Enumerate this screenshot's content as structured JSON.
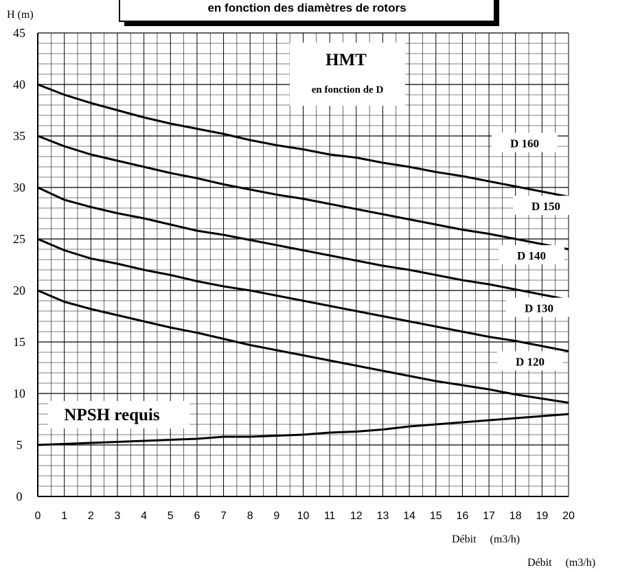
{
  "title_box": {
    "text": "en fonction des diamètres de rotors"
  },
  "hmt_box": {
    "title": "HMT",
    "subtitle": "en fonction de D"
  },
  "npsh_box": {
    "text": "NPSH requis"
  },
  "axes": {
    "ylabel": "H (m)",
    "xlabel_1": "Débit     (m3/h)",
    "xlabel_2": "Débit     (m3/h)"
  },
  "chart_data": {
    "type": "line",
    "title": "en fonction des diamètres de rotors",
    "xlabel": "Débit (m3/h)",
    "ylabel": "H (m)",
    "xlim": [
      0,
      20
    ],
    "ylim": [
      0,
      45
    ],
    "x_ticks": [
      0,
      1,
      2,
      3,
      4,
      5,
      6,
      7,
      8,
      9,
      10,
      11,
      12,
      13,
      14,
      15,
      16,
      17,
      18,
      19,
      20
    ],
    "y_ticks": [
      0,
      5,
      10,
      15,
      20,
      25,
      30,
      35,
      40,
      45
    ],
    "grid": true,
    "x": [
      0,
      1,
      2,
      3,
      4,
      5,
      6,
      7,
      8,
      9,
      10,
      11,
      12,
      13,
      14,
      15,
      16,
      17,
      18,
      19,
      20
    ],
    "series": [
      {
        "name": "D 160",
        "values": [
          40,
          39.0,
          38.2,
          37.5,
          36.8,
          36.2,
          35.7,
          35.2,
          34.6,
          34.1,
          33.7,
          33.2,
          32.9,
          32.4,
          32.0,
          31.5,
          31.1,
          30.6,
          30.1,
          29.6,
          29.1
        ]
      },
      {
        "name": "D 150",
        "values": [
          35,
          34.0,
          33.2,
          32.6,
          32.0,
          31.4,
          30.9,
          30.3,
          29.8,
          29.3,
          28.9,
          28.4,
          27.9,
          27.4,
          26.9,
          26.4,
          25.9,
          25.5,
          25.0,
          24.5,
          24.0
        ]
      },
      {
        "name": "D 140",
        "values": [
          30,
          28.8,
          28.1,
          27.5,
          27.0,
          26.4,
          25.8,
          25.4,
          24.9,
          24.4,
          23.9,
          23.4,
          22.9,
          22.4,
          22.0,
          21.5,
          21.0,
          20.6,
          20.1,
          19.6,
          19.1
        ]
      },
      {
        "name": "D 130",
        "values": [
          25,
          23.9,
          23.1,
          22.6,
          22.0,
          21.5,
          20.9,
          20.4,
          20.0,
          19.5,
          19.0,
          18.5,
          18.0,
          17.5,
          17.0,
          16.5,
          16.0,
          15.5,
          15.1,
          14.6,
          14.1
        ]
      },
      {
        "name": "D 120",
        "values": [
          20,
          18.9,
          18.2,
          17.6,
          17.0,
          16.4,
          15.9,
          15.3,
          14.7,
          14.2,
          13.7,
          13.2,
          12.7,
          12.2,
          11.7,
          11.2,
          10.8,
          10.4,
          9.9,
          9.5,
          9.1
        ]
      },
      {
        "name": "NPSH requis",
        "values": [
          5,
          5.1,
          5.2,
          5.3,
          5.4,
          5.5,
          5.6,
          5.8,
          5.8,
          5.9,
          6.0,
          6.2,
          6.3,
          6.5,
          6.8,
          7.0,
          7.2,
          7.4,
          7.6,
          7.8,
          8.0
        ]
      }
    ]
  }
}
